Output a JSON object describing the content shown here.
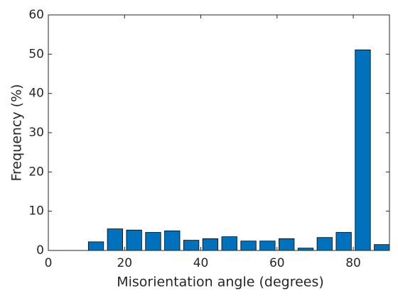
{
  "chart_data": {
    "type": "bar",
    "xlabel": "Misorientation angle (degrees)",
    "ylabel": "Frequency (%)",
    "x": [
      12.5,
      17.5,
      22.5,
      27.5,
      32.5,
      37.5,
      42.5,
      47.5,
      52.5,
      57.5,
      62.5,
      67.5,
      72.5,
      77.5,
      82.5,
      87.5
    ],
    "values": [
      2.2,
      5.5,
      5.2,
      4.6,
      5.0,
      2.6,
      3.0,
      3.5,
      2.4,
      2.4,
      3.0,
      0.6,
      3.3,
      4.6,
      51.1,
      1.5
    ],
    "bar_width": 4,
    "color": "#0072bd",
    "xlim": [
      0,
      89.5
    ],
    "xticks": [
      0,
      20,
      40,
      60,
      80
    ],
    "ylim": [
      0,
      60
    ],
    "yticks": [
      0,
      10,
      20,
      30,
      40,
      50,
      60
    ]
  }
}
